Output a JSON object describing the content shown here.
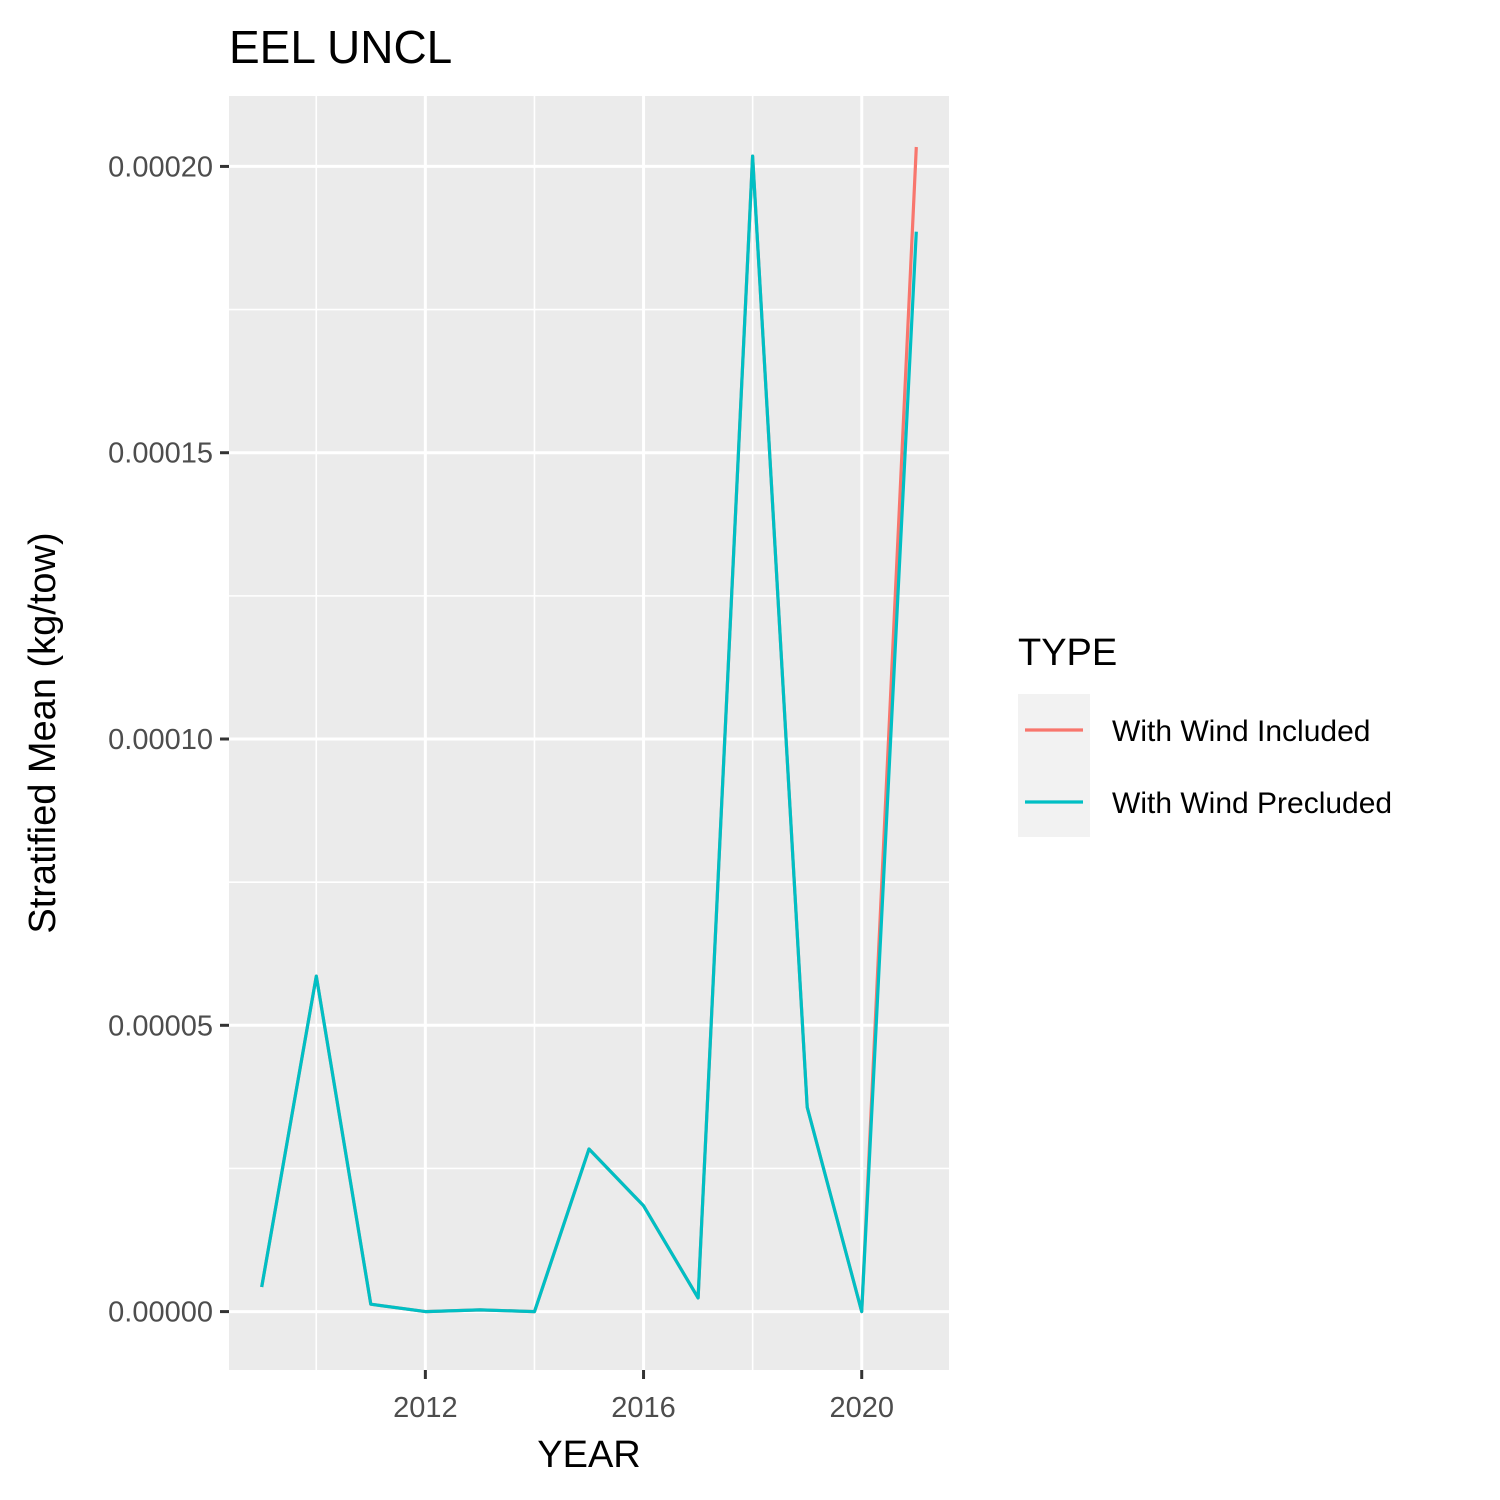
{
  "chart_data": {
    "type": "line",
    "title": "EEL UNCL",
    "xlabel": "YEAR",
    "ylabel": "Stratified Mean (kg/tow)",
    "xlim": [
      2008.4,
      2021.6
    ],
    "ylim": [
      -1.02e-05,
      0.0002123
    ],
    "x_ticks": [
      2012,
      2016,
      2020
    ],
    "x_tick_labels": [
      "2012",
      "2016",
      "2020"
    ],
    "x_minor_ticks": [
      2010,
      2014,
      2018
    ],
    "y_ticks": [
      0,
      5e-05,
      0.0001,
      0.00015,
      0.0002
    ],
    "y_tick_labels": [
      "0.00000",
      "0.00005",
      "0.00010",
      "0.00015",
      "0.00020"
    ],
    "y_minor_ticks": [
      2.5e-05,
      7.5e-05,
      0.000125,
      0.000175
    ],
    "legend": {
      "title": "TYPE",
      "position": "right"
    },
    "series": [
      {
        "name": "With Wind Included",
        "color": "#F8766D",
        "x": [
          2009,
          2010,
          2011,
          2012,
          2013,
          2014,
          2015,
          2016,
          2017,
          2018,
          2019,
          2020,
          2021
        ],
        "y": [
          4.3e-06,
          5.86e-05,
          1.3e-06,
          0.0,
          3e-07,
          0.0,
          2.84e-05,
          1.85e-05,
          2.4e-06,
          0.0002018,
          3.57e-05,
          0.0,
          0.0002034
        ]
      },
      {
        "name": "With Wind Precluded",
        "color": "#00BFC4",
        "x": [
          2009,
          2010,
          2011,
          2012,
          2013,
          2014,
          2015,
          2016,
          2017,
          2018,
          2019,
          2020,
          2021
        ],
        "y": [
          4.3e-06,
          5.86e-05,
          1.3e-06,
          0.0,
          3e-07,
          0.0,
          2.84e-05,
          1.85e-05,
          2.4e-06,
          0.0002018,
          3.57e-05,
          0.0,
          0.0001886
        ]
      }
    ]
  }
}
